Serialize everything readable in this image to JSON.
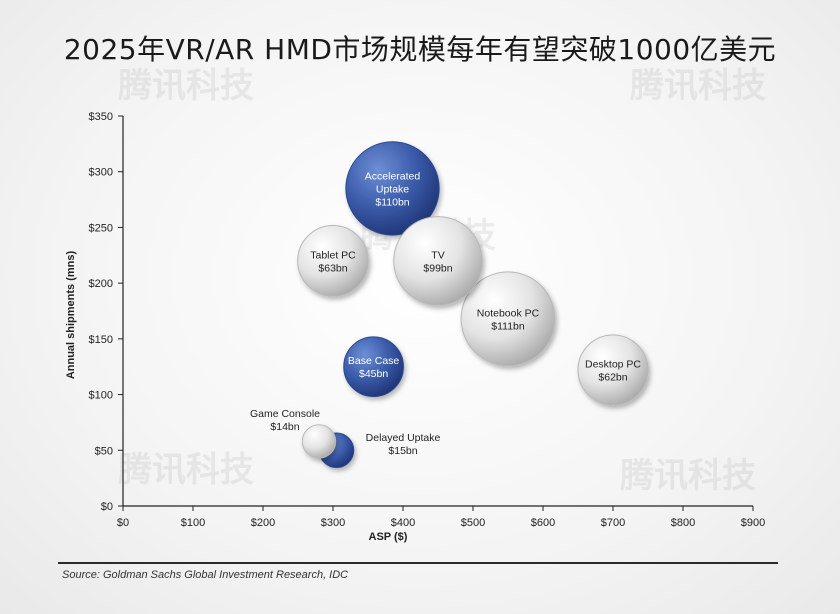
{
  "title": "2025年VR/AR HMD市场规模每年有望突破1000亿美元",
  "source": "Source: Goldman Sachs Global Investment Research, IDC",
  "watermark": "腾讯科技",
  "colors": {
    "blue": "#3a5aa8",
    "gray": "#d9d9d9",
    "axis": "#222222"
  },
  "chart_data": {
    "type": "bubble",
    "title": "2025年VR/AR HMD市场规模每年有望突破1000亿美元",
    "xlabel": "ASP ($)",
    "ylabel": "Annual shipments (mns)",
    "xlim": [
      0,
      900
    ],
    "ylim": [
      0,
      350
    ],
    "xticks": [
      "$0",
      "$100",
      "$200",
      "$300",
      "$400",
      "$500",
      "$600",
      "$700",
      "$800",
      "$900"
    ],
    "yticks": [
      "$0",
      "$50",
      "$100",
      "$150",
      "$200",
      "$250",
      "$300",
      "$350"
    ],
    "bubbles": [
      {
        "name": "Accelerated Uptake",
        "value": "$110bn",
        "x": 385,
        "y": 285,
        "size": 110,
        "color": "blue",
        "label_inside": true
      },
      {
        "name": "Tablet PC",
        "value": "$63bn",
        "x": 300,
        "y": 220,
        "size": 63,
        "color": "gray",
        "label_inside": true
      },
      {
        "name": "TV",
        "value": "$99bn",
        "x": 450,
        "y": 220,
        "size": 99,
        "color": "gray",
        "label_inside": true
      },
      {
        "name": "Notebook PC",
        "value": "$111bn",
        "x": 550,
        "y": 168,
        "size": 111,
        "color": "gray",
        "label_inside": true
      },
      {
        "name": "Base Case",
        "value": "$45bn",
        "x": 358,
        "y": 125,
        "size": 45,
        "color": "blue",
        "label_inside": true
      },
      {
        "name": "Desktop PC",
        "value": "$62bn",
        "x": 700,
        "y": 122,
        "size": 62,
        "color": "gray",
        "label_inside": true
      },
      {
        "name": "Game Console",
        "value": "$14bn",
        "x": 280,
        "y": 58,
        "size": 14,
        "color": "gray",
        "label_inside": false
      },
      {
        "name": "Delayed Uptake",
        "value": "$15bn",
        "x": 305,
        "y": 50,
        "size": 15,
        "color": "blue",
        "label_inside": false
      }
    ]
  }
}
